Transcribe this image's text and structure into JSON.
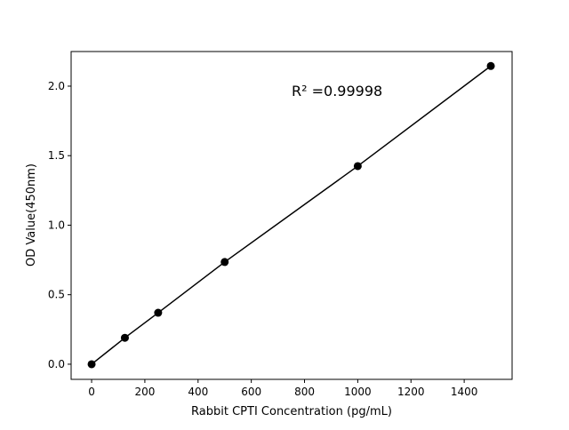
{
  "chart_data": {
    "type": "line",
    "title": "",
    "xlabel": "Rabbit CPTI Concentration (pg/mL)",
    "ylabel": "OD Value(450nm)",
    "xlim": [
      -77,
      1580
    ],
    "ylim": [
      -0.109,
      2.249
    ],
    "xticks": [
      0,
      200,
      400,
      600,
      800,
      1000,
      1200,
      1400
    ],
    "yticks": [
      0.0,
      0.5,
      1.0,
      1.5,
      2.0
    ],
    "xtick_labels": [
      "0",
      "200",
      "400",
      "600",
      "800",
      "1000",
      "1200",
      "1400"
    ],
    "ytick_labels": [
      "0.0",
      "0.5",
      "1.0",
      "1.5",
      "2.0"
    ],
    "grid": false,
    "series": [
      {
        "x": [
          0,
          125,
          250,
          500,
          1000,
          1500
        ],
        "y": [
          0.0,
          0.19,
          0.37,
          0.735,
          1.425,
          2.145
        ],
        "color": "#000000",
        "marker": "circle"
      }
    ],
    "annotation": "R² =0.99998"
  }
}
